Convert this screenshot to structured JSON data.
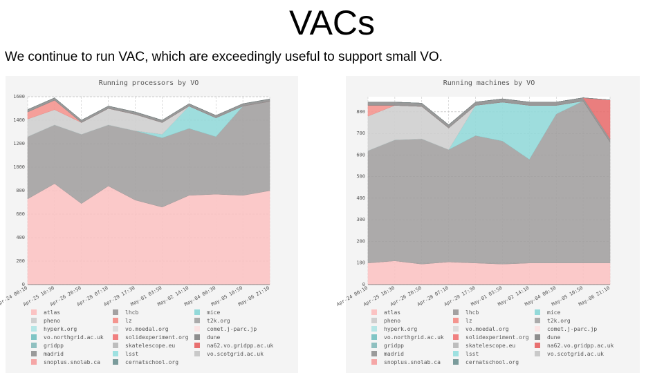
{
  "title": "VACs",
  "text": "We continue to run VAC, which are exceedingly useful to support small VO.",
  "chart_data": [
    {
      "type": "stacked-area",
      "title": "Running processors by VO",
      "categories": [
        "Apr-24 00:10",
        "Apr-25 10:30",
        "Apr-26 20:50",
        "Apr-28 07:10",
        "Apr-29 17:30",
        "May-01 03:50",
        "May-02 14:10",
        "May-04 00:30",
        "May-05 10:50",
        "May-06 21:10"
      ],
      "ylim": [
        0,
        1600
      ],
      "yticks": [
        0,
        200,
        400,
        600,
        800,
        1000,
        1200,
        1400,
        1600
      ],
      "grid": true,
      "series": [
        {
          "name": "atlas",
          "color": "#fbc3c3",
          "values": [
            730,
            860,
            690,
            840,
            720,
            660,
            760,
            770,
            760,
            800
          ]
        },
        {
          "name": "lhcb",
          "color": "#a3a1a1",
          "values": [
            530,
            500,
            590,
            520,
            590,
            590,
            570,
            490,
            760,
            760
          ]
        },
        {
          "name": "mice",
          "color": "#93d9d9",
          "values": [
            0,
            0,
            0,
            0,
            0,
            30,
            190,
            160,
            0,
            0
          ]
        },
        {
          "name": "pheno",
          "color": "#cfcfcf",
          "values": [
            150,
            130,
            100,
            140,
            140,
            100,
            0,
            0,
            0,
            0
          ]
        },
        {
          "name": "lz",
          "color": "#f4958f",
          "values": [
            60,
            80,
            0,
            0,
            0,
            0,
            0,
            0,
            0,
            0
          ]
        },
        {
          "name": "t2k.org",
          "color": "#ababab",
          "values": [
            0,
            0,
            0,
            0,
            0,
            0,
            0,
            0,
            0,
            0
          ]
        },
        {
          "name": "hyperk.org",
          "color": "#b6e6e6",
          "values": [
            0,
            0,
            0,
            0,
            0,
            0,
            0,
            0,
            0,
            0
          ]
        },
        {
          "name": "vo.moedal.org",
          "color": "#dcdcdc",
          "values": [
            0,
            0,
            0,
            0,
            0,
            0,
            0,
            0,
            0,
            0
          ]
        },
        {
          "name": "comet.j-parc.jp",
          "color": "#fbe4e4",
          "values": [
            0,
            0,
            0,
            0,
            0,
            0,
            0,
            0,
            0,
            0
          ]
        },
        {
          "name": "vo.northgrid.ac.uk",
          "color": "#7fc5c5",
          "values": [
            0,
            0,
            0,
            0,
            0,
            0,
            0,
            0,
            0,
            0
          ]
        },
        {
          "name": "solidexperiment.org",
          "color": "#f08080",
          "values": [
            0,
            0,
            0,
            0,
            0,
            0,
            0,
            0,
            0,
            0
          ]
        },
        {
          "name": "dune",
          "color": "#8e8e8e",
          "values": [
            20,
            20,
            20,
            20,
            20,
            20,
            20,
            20,
            20,
            20
          ]
        },
        {
          "name": "gridpp",
          "color": "#8fc0c0",
          "values": [
            0,
            0,
            0,
            0,
            0,
            0,
            0,
            0,
            0,
            0
          ]
        },
        {
          "name": "skatelescope.eu",
          "color": "#bdbdbd",
          "values": [
            0,
            0,
            0,
            0,
            0,
            0,
            0,
            0,
            0,
            0
          ]
        },
        {
          "name": "na62.vo.gridpp.ac.uk",
          "color": "#e87070",
          "values": [
            0,
            0,
            0,
            0,
            0,
            0,
            0,
            0,
            0,
            0
          ]
        },
        {
          "name": "madrid",
          "color": "#9a9a9a",
          "values": [
            0,
            0,
            0,
            0,
            0,
            0,
            0,
            0,
            0,
            0
          ]
        },
        {
          "name": "lsst",
          "color": "#9ee1e1",
          "values": [
            0,
            0,
            0,
            0,
            0,
            0,
            0,
            0,
            0,
            0
          ]
        },
        {
          "name": "vo.scotgrid.ac.uk",
          "color": "#c9c9c9",
          "values": [
            0,
            0,
            0,
            0,
            0,
            0,
            0,
            0,
            0,
            0
          ]
        },
        {
          "name": "snoplus.snolab.ca",
          "color": "#f5a6a6",
          "values": [
            0,
            0,
            0,
            0,
            0,
            0,
            0,
            0,
            0,
            0
          ]
        },
        {
          "name": "cernatschool.org",
          "color": "#7a9b9b",
          "values": [
            0,
            0,
            0,
            0,
            0,
            0,
            0,
            0,
            0,
            0
          ]
        }
      ]
    },
    {
      "type": "stacked-area",
      "title": "Running machines by VO",
      "categories": [
        "Apr-24 00:10",
        "Apr-25 10:30",
        "Apr-26 20:50",
        "Apr-28 07:10",
        "Apr-29 17:30",
        "May-01 03:50",
        "May-02 14:10",
        "May-04 00:30",
        "May-05 10:50",
        "May-06 21:10"
      ],
      "ylim": [
        0,
        870
      ],
      "yticks": [
        0,
        100,
        200,
        300,
        400,
        500,
        600,
        700,
        800
      ],
      "grid": true,
      "series": [
        {
          "name": "atlas",
          "color": "#fbc3c3",
          "values": [
            100,
            110,
            95,
            105,
            100,
            95,
            100,
            100,
            100,
            100
          ]
        },
        {
          "name": "lhcb",
          "color": "#a3a1a1",
          "values": [
            520,
            560,
            580,
            520,
            590,
            570,
            480,
            690,
            750,
            560
          ]
        },
        {
          "name": "mice",
          "color": "#93d9d9",
          "values": [
            0,
            0,
            0,
            0,
            140,
            180,
            250,
            40,
            0,
            0
          ]
        },
        {
          "name": "pheno",
          "color": "#cfcfcf",
          "values": [
            160,
            160,
            150,
            100,
            0,
            0,
            0,
            0,
            0,
            0
          ]
        },
        {
          "name": "lz",
          "color": "#f4958f",
          "values": [
            50,
            0,
            0,
            0,
            0,
            0,
            0,
            0,
            0,
            0
          ]
        },
        {
          "name": "t2k.org",
          "color": "#ababab",
          "values": [
            0,
            0,
            0,
            0,
            0,
            0,
            0,
            0,
            0,
            0
          ]
        },
        {
          "name": "hyperk.org",
          "color": "#b6e6e6",
          "values": [
            0,
            0,
            0,
            0,
            0,
            0,
            0,
            0,
            0,
            0
          ]
        },
        {
          "name": "vo.moedal.org",
          "color": "#dcdcdc",
          "values": [
            0,
            0,
            0,
            0,
            0,
            0,
            0,
            0,
            0,
            0
          ]
        },
        {
          "name": "comet.j-parc.jp",
          "color": "#fbe4e4",
          "values": [
            0,
            0,
            0,
            0,
            0,
            0,
            0,
            0,
            0,
            0
          ]
        },
        {
          "name": "vo.northgrid.ac.uk",
          "color": "#7fc5c5",
          "values": [
            0,
            0,
            0,
            0,
            0,
            0,
            0,
            0,
            0,
            0
          ]
        },
        {
          "name": "solidexperiment.org",
          "color": "#f08080",
          "values": [
            0,
            0,
            0,
            0,
            0,
            0,
            0,
            0,
            0,
            0
          ]
        },
        {
          "name": "dune",
          "color": "#8e8e8e",
          "values": [
            15,
            15,
            15,
            15,
            15,
            15,
            15,
            15,
            15,
            15
          ]
        },
        {
          "name": "gridpp",
          "color": "#8fc0c0",
          "values": [
            0,
            0,
            0,
            0,
            0,
            0,
            0,
            0,
            0,
            0
          ]
        },
        {
          "name": "skatelescope.eu",
          "color": "#bdbdbd",
          "values": [
            0,
            0,
            0,
            0,
            0,
            0,
            0,
            0,
            0,
            0
          ]
        },
        {
          "name": "na62.vo.gridpp.ac.uk",
          "color": "#e87070",
          "values": [
            0,
            0,
            0,
            0,
            0,
            0,
            0,
            0,
            0,
            180
          ]
        },
        {
          "name": "madrid",
          "color": "#9a9a9a",
          "values": [
            0,
            0,
            0,
            0,
            0,
            0,
            0,
            0,
            0,
            0
          ]
        },
        {
          "name": "lsst",
          "color": "#9ee1e1",
          "values": [
            0,
            0,
            0,
            0,
            0,
            0,
            0,
            0,
            0,
            0
          ]
        },
        {
          "name": "vo.scotgrid.ac.uk",
          "color": "#c9c9c9",
          "values": [
            0,
            0,
            0,
            0,
            0,
            0,
            0,
            0,
            0,
            0
          ]
        },
        {
          "name": "snoplus.snolab.ca",
          "color": "#f5a6a6",
          "values": [
            0,
            0,
            0,
            0,
            0,
            0,
            0,
            0,
            0,
            0
          ]
        },
        {
          "name": "cernatschool.org",
          "color": "#7a9b9b",
          "values": [
            0,
            0,
            0,
            0,
            0,
            0,
            0,
            0,
            0,
            0
          ]
        }
      ]
    }
  ]
}
